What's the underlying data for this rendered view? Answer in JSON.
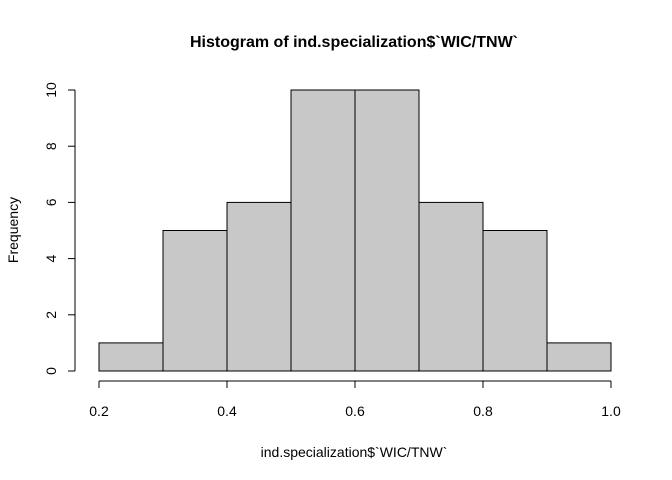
{
  "chart_data": {
    "type": "bar",
    "subtype": "histogram",
    "title": "Histogram of ind.specialization$`WIC/TNW`",
    "xlabel": "ind.specialization$`WIC/TNW`",
    "ylabel": "Frequency",
    "bins": [
      {
        "start": 0.2,
        "end": 0.3,
        "count": 1
      },
      {
        "start": 0.3,
        "end": 0.4,
        "count": 5
      },
      {
        "start": 0.4,
        "end": 0.5,
        "count": 6
      },
      {
        "start": 0.5,
        "end": 0.6,
        "count": 10
      },
      {
        "start": 0.6,
        "end": 0.7,
        "count": 10
      },
      {
        "start": 0.7,
        "end": 0.8,
        "count": 6
      },
      {
        "start": 0.8,
        "end": 0.9,
        "count": 5
      },
      {
        "start": 0.9,
        "end": 1.0,
        "count": 1
      }
    ],
    "xlim": [
      0.2,
      1.0
    ],
    "ylim": [
      0,
      10
    ],
    "x_ticks": [
      0.2,
      0.4,
      0.6,
      0.8,
      1.0
    ],
    "x_tick_labels": [
      "0.2",
      "0.4",
      "0.6",
      "0.8",
      "1.0"
    ],
    "y_ticks": [
      0,
      2,
      4,
      6,
      8,
      10
    ],
    "y_tick_labels": [
      "0",
      "2",
      "4",
      "6",
      "8",
      "10"
    ],
    "bar_fill": "#c8c8c8",
    "bar_stroke": "#000000",
    "grid": false
  }
}
